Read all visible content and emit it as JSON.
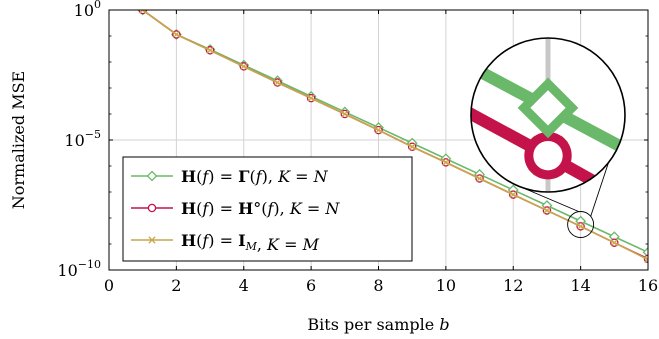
{
  "chart_data": {
    "type": "line",
    "xlabel": "Bits per sample",
    "xlabel_var": "b",
    "ylabel": "Normalized MSE",
    "xlim": [
      0,
      16
    ],
    "ylim_log10": [
      -10,
      0
    ],
    "y_scale": "log",
    "grid": true,
    "x_ticks": [
      "0",
      "2",
      "4",
      "6",
      "8",
      "10",
      "12",
      "14",
      "16"
    ],
    "y_ticks": [
      {
        "base": "10",
        "exp": "0"
      },
      {
        "base": "10",
        "exp": "−5"
      },
      {
        "base": "10",
        "exp": "−10"
      }
    ],
    "legend_position": "lower-left",
    "inset": {
      "type": "zoom",
      "center_x": 14
    },
    "series": [
      {
        "name": "H(f) = Γ(f), K = N",
        "legend_parts": [
          [
            "H",
            "b"
          ],
          [
            "(f) = ",
            "r"
          ],
          [
            "Γ",
            "b"
          ],
          [
            "(f), K = N",
            "r"
          ]
        ],
        "color": "#6ab96a",
        "marker": "diamond",
        "x": [
          1,
          2,
          3,
          4,
          5,
          6,
          7,
          8,
          9,
          10,
          11,
          12,
          13,
          14,
          15,
          16
        ],
        "y_log10": [
          0,
          -0.94,
          -1.52,
          -2.12,
          -2.72,
          -3.32,
          -3.92,
          -4.52,
          -5.12,
          -5.72,
          -6.32,
          -6.92,
          -7.52,
          -8.12,
          -8.72,
          -9.32
        ]
      },
      {
        "name": "H(f) = H°(f), K = N",
        "legend_parts": [
          [
            "H",
            "b"
          ],
          [
            "(f) = ",
            "r"
          ],
          [
            "H",
            "b"
          ],
          [
            "°",
            "r"
          ],
          [
            "(f), K = N",
            "r"
          ]
        ],
        "color": "#c4134a",
        "marker": "circle",
        "x": [
          1,
          2,
          3,
          4,
          5,
          6,
          7,
          8,
          9,
          10,
          11,
          12,
          13,
          14,
          15,
          16
        ],
        "y_log10": [
          0,
          -0.94,
          -1.55,
          -2.17,
          -2.79,
          -3.39,
          -4.0,
          -4.62,
          -5.26,
          -5.86,
          -6.48,
          -7.1,
          -7.71,
          -8.32,
          -8.95,
          -9.57
        ]
      },
      {
        "name": "H(f) = I_M, K = M",
        "legend_parts": [
          [
            "H",
            "b"
          ],
          [
            "(f) = ",
            "r"
          ],
          [
            "I",
            "b"
          ],
          [
            "M",
            "sub"
          ],
          [
            ", K = M",
            "r"
          ]
        ],
        "color": "#c9a74a",
        "marker": "x",
        "x": [
          1,
          2,
          3,
          4,
          5,
          6,
          7,
          8,
          9,
          10,
          11,
          12,
          13,
          14,
          15,
          16
        ],
        "y_log10": [
          0,
          -0.94,
          -1.55,
          -2.17,
          -2.79,
          -3.39,
          -4.0,
          -4.62,
          -5.26,
          -5.86,
          -6.48,
          -7.1,
          -7.71,
          -8.32,
          -8.95,
          -9.6
        ]
      }
    ]
  }
}
